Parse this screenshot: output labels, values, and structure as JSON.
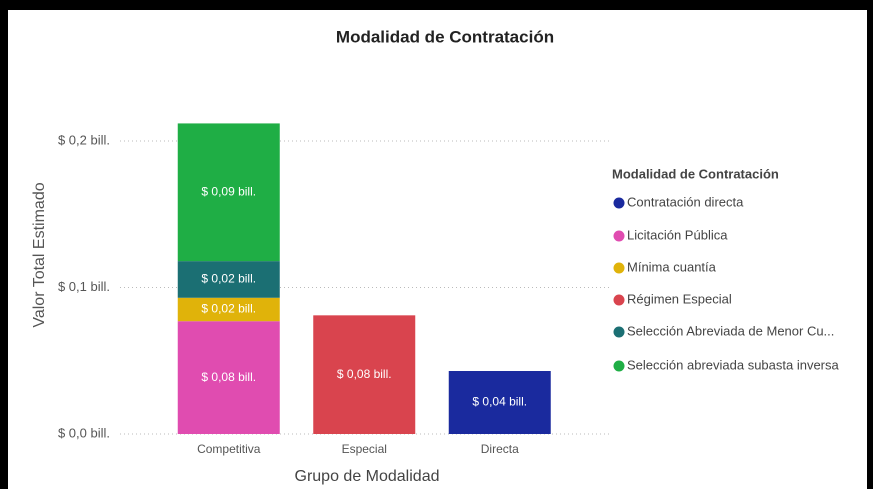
{
  "chart_data": {
    "type": "stacked_bar",
    "title": "Modalidad de Contratación",
    "x_label": "Grupo de Modalidad",
    "y_label": "Valor Total Estimado",
    "legend_title": "Modalidad de Contratación",
    "legend": "right",
    "grid": true,
    "categories": [
      "Competitiva",
      "Especial",
      "Directa"
    ],
    "series": [
      {
        "name": "Contratación directa",
        "color": "#1a2a9e",
        "values": [
          null,
          null,
          0.043
        ],
        "value_labels": [
          null,
          null,
          "$ 0,04 bill."
        ]
      },
      {
        "name": "Licitación Pública",
        "color": "#e04cb0",
        "values": [
          0.077,
          null,
          null
        ],
        "value_labels": [
          "$ 0,08 bill.",
          null,
          null
        ]
      },
      {
        "name": "Mínima cuantía",
        "color": "#e0b30a",
        "values": [
          0.016,
          null,
          null
        ],
        "value_labels": [
          "$ 0,02 bill.",
          null,
          null
        ]
      },
      {
        "name": "Régimen Especial",
        "color": "#d9444e",
        "values": [
          null,
          0.081,
          null
        ],
        "value_labels": [
          null,
          "$ 0,08 bill.",
          null
        ]
      },
      {
        "name": "Selección Abreviada de Menor Cu...",
        "color": "#1b6f73",
        "values": [
          0.025,
          null,
          null
        ],
        "value_labels": [
          "$ 0,02 bill.",
          null,
          null
        ]
      },
      {
        "name": "Selección abreviada subasta inversa",
        "color": "#1fae45",
        "values": [
          0.094,
          null,
          null
        ],
        "value_labels": [
          "$ 0,09 bill.",
          null,
          null
        ]
      }
    ],
    "ylim": [
      0,
      0.22
    ],
    "yticks": [
      {
        "value": 0,
        "label": "$ 0,0 bill."
      },
      {
        "value": 0.1,
        "label": "$ 0,1 bill."
      },
      {
        "value": 0.2,
        "label": "$ 0,2 bill."
      }
    ]
  }
}
